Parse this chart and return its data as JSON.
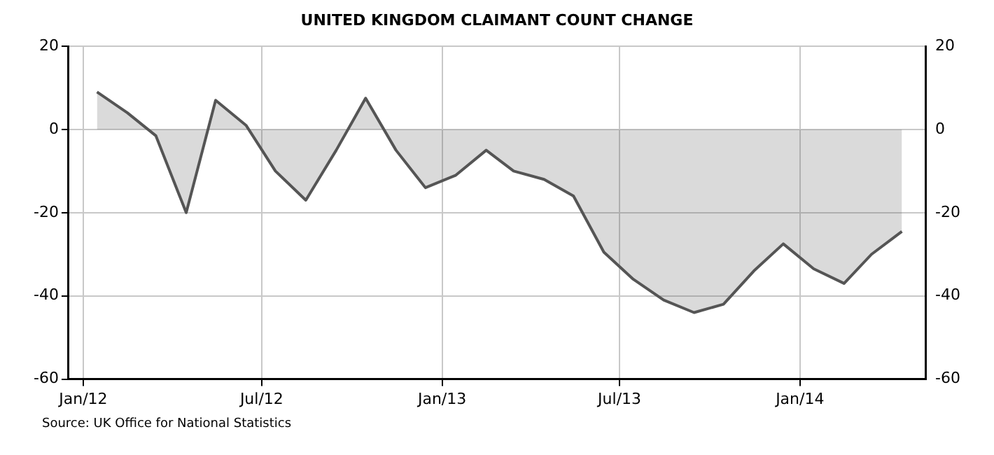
{
  "chart_data": {
    "type": "area",
    "title": "UNITED KINGDOM CLAIMANT COUNT CHANGE",
    "x": [
      "2012-01-15",
      "2012-02-15",
      "2012-03-15",
      "2012-04-15",
      "2012-05-15",
      "2012-06-15",
      "2012-07-15",
      "2012-08-15",
      "2012-09-15",
      "2012-10-15",
      "2012-11-15",
      "2012-12-15",
      "2013-01-15",
      "2013-02-15",
      "2013-03-15",
      "2013-04-15",
      "2013-05-15",
      "2013-06-15",
      "2013-07-15",
      "2013-08-15",
      "2013-09-15",
      "2013-10-15",
      "2013-11-15",
      "2013-12-15",
      "2014-01-15",
      "2014-02-15",
      "2014-03-15",
      "2014-04-15"
    ],
    "series": [
      {
        "color": "#555555",
        "values": [
          9,
          4,
          -1.5,
          -20,
          7,
          1,
          -10,
          -17,
          -5,
          7.5,
          -5,
          -14,
          -11,
          -5,
          -10,
          -12,
          -16,
          -29.5,
          -36,
          -41,
          -44,
          -42,
          -34,
          -27.5,
          -33.5,
          -37,
          -30,
          -24.5
        ]
      }
    ],
    "xlim": [
      "2011-12-17",
      "2014-05-09"
    ],
    "xticks": [
      {
        "value": "2012-01-01",
        "label": "Jan/12"
      },
      {
        "value": "2012-07-01",
        "label": "Jul/12"
      },
      {
        "value": "2013-01-01",
        "label": "Jan/13"
      },
      {
        "value": "2013-07-01",
        "label": "Jul/13"
      },
      {
        "value": "2014-01-01",
        "label": "Jan/14"
      }
    ],
    "ylim": [
      -60,
      20
    ],
    "yticks": [
      -60,
      -40,
      -20,
      0,
      20
    ],
    "y2lim": [
      -60,
      20
    ],
    "y2ticks": [
      -60,
      -40,
      -20,
      0,
      20
    ],
    "grid": true,
    "legend": false,
    "marker": "none",
    "line_style": "solid",
    "annotations": [
      "Source: UK Office for National Statistics"
    ]
  }
}
